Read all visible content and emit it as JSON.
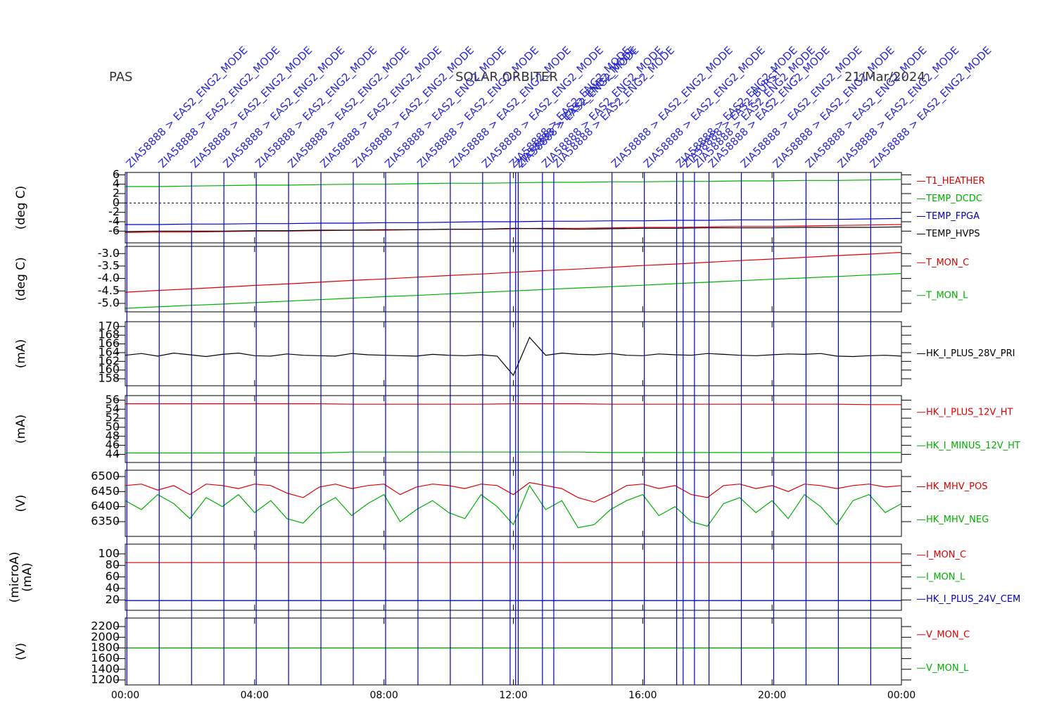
{
  "header": {
    "left": "PAS",
    "center": "SOLAR ORBITER",
    "right": "21/Mar/2024"
  },
  "events": {
    "x": [
      0.05,
      1.05,
      2.05,
      3.05,
      4.05,
      5.05,
      6.05,
      7.05,
      8.05,
      9.05,
      10.05,
      11.05,
      11.9,
      12.07,
      12.15,
      12.9,
      13.25,
      15.05,
      16.05,
      17.05,
      17.25,
      17.6,
      18.05,
      19.05,
      20.05,
      21.05,
      22.05,
      23.05
    ],
    "labels": [
      "ZIA58888 > EAS2_ENG2_MODE",
      "ZIA58888 > EAS2_ENG2_MODE",
      "ZIA58888 > EAS2_ENG2_MODE",
      "ZIA58888 > EAS2_ENG2_MODE",
      "ZIA58888 > EAS2_ENG2_MODE",
      "ZIA58888 > EAS2_ENG2_MODE",
      "ZIA58888 > EAS2_ENG2_MODE",
      "ZIA58888 > EAS2_ENG2_MODE",
      "ZIA58888 > EAS2_ENG2_MODE",
      "ZIA58888 > EAS2_ENG2_MODE",
      "ZIA58888 > EAS2_ENG2_MODE",
      "ZIA58888 > EAS2_ENG2_MODE",
      "ZIA58888 > EAS2_ENG2_MODE",
      "ZIA58888 > EAS2_ENG2_MODE",
      "ZIA58888 > EAS2_ENG2_MODE",
      "ZIA58888 > EAS2_ENG2_MODE",
      "ZIA58888 > EAS2_ENG2_MODE",
      "ZIA58888 > EAS2_ENG2_MODE",
      "ZIA58888 > EAS2_ENG2_MODE",
      "ZIA58888 > EAS2_ENG2_MODE",
      "ZIA58888 > EAS2_BURST",
      "ZIA58888 > EAS2_ENG2_MODE",
      "ZIA58888 > EAS2_ENG2_MODE",
      "ZIA58888 > EAS2_ENG2_MODE",
      "ZIA58888 > EAS2_ENG2_MODE",
      "ZIA58888 > EAS2_ENG2_MODE",
      "ZIA58888 > EAS2_ENG2_MODE",
      "ZIA58888 > EAS2_ENG2_MODE"
    ]
  },
  "chart_data": [
    {
      "type": "line",
      "ylabel": [
        "(deg C)"
      ],
      "ylim": [
        -8.5,
        6.5
      ],
      "yticks": [
        6,
        4,
        2,
        0,
        -2,
        -4,
        -6
      ],
      "hline": 0,
      "x": [
        0,
        1,
        2,
        3,
        4,
        5,
        6,
        7,
        8,
        9,
        10,
        11,
        12,
        13,
        14,
        15,
        16,
        17,
        18,
        19,
        20,
        21,
        22,
        23,
        24
      ],
      "series": [
        {
          "name": "T1_HEATHER",
          "color": "#e00000",
          "values": [
            -6.3,
            -6.2,
            -6.2,
            -6.1,
            -6.0,
            -6.0,
            -5.9,
            -5.8,
            -5.8,
            -5.7,
            -5.6,
            -5.6,
            -5.5,
            -5.4,
            -5.4,
            -5.3,
            -5.2,
            -5.2,
            -5.1,
            -5.0,
            -5.0,
            -4.9,
            -4.8,
            -4.7,
            -4.6
          ]
        },
        {
          "name": "TEMP_DCDC",
          "color": "#00b000",
          "values": [
            3.5,
            3.5,
            3.6,
            3.7,
            3.8,
            3.8,
            3.9,
            4.0,
            4.0,
            4.1,
            4.2,
            4.2,
            4.3,
            4.4,
            4.4,
            4.5,
            4.5,
            4.6,
            4.6,
            4.7,
            4.7,
            4.8,
            4.8,
            4.9,
            5.0
          ]
        },
        {
          "name": "TEMP_FPGA",
          "color": "#0000c0",
          "values": [
            -4.6,
            -4.6,
            -4.5,
            -4.5,
            -4.4,
            -4.4,
            -4.3,
            -4.3,
            -4.2,
            -4.2,
            -4.1,
            -4.0,
            -4.0,
            -3.9,
            -3.9,
            -3.8,
            -3.8,
            -3.7,
            -3.7,
            -3.6,
            -3.6,
            -3.5,
            -3.5,
            -3.4,
            -3.3
          ]
        },
        {
          "name": "TEMP_HVPS",
          "color": "#000000",
          "values": [
            -6.1,
            -6.0,
            -6.0,
            -6.0,
            -5.9,
            -5.9,
            -5.8,
            -5.8,
            -5.7,
            -5.7,
            -5.6,
            -5.6,
            -5.4,
            -5.5,
            -5.6,
            -5.5,
            -5.4,
            -5.4,
            -5.3,
            -5.3,
            -5.3,
            -5.2,
            -5.2,
            -5.2,
            -5.1
          ]
        }
      ]
    },
    {
      "type": "line",
      "ylabel": [
        "(deg C)"
      ],
      "ylim": [
        -5.34,
        -2.71
      ],
      "yticks": [
        {
          "value": -3,
          "label": "-3.0"
        },
        {
          "value": -3.5,
          "label": "-3.5"
        },
        {
          "value": -4,
          "label": "-4.0"
        },
        {
          "value": -4.5,
          "label": "-4.5"
        },
        {
          "value": -5,
          "label": "-5.0"
        }
      ],
      "x": [
        0,
        1,
        2,
        3,
        4,
        5,
        6,
        7,
        8,
        9,
        10,
        11,
        12,
        13,
        14,
        15,
        16,
        17,
        18,
        19,
        20,
        21,
        22,
        23,
        24
      ],
      "series": [
        {
          "name": "T_MON_C",
          "color": "#e00000",
          "values": [
            -4.55,
            -4.48,
            -4.42,
            -4.35,
            -4.28,
            -4.22,
            -4.15,
            -4.08,
            -4.02,
            -3.95,
            -3.88,
            -3.82,
            -3.75,
            -3.68,
            -3.62,
            -3.55,
            -3.48,
            -3.42,
            -3.35,
            -3.28,
            -3.22,
            -3.15,
            -3.08,
            -3.02,
            -2.95
          ]
        },
        {
          "name": "T_MON_L",
          "color": "#00b000",
          "values": [
            -5.2,
            -5.14,
            -5.08,
            -5.03,
            -4.97,
            -4.91,
            -4.85,
            -4.79,
            -4.73,
            -4.68,
            -4.62,
            -4.56,
            -4.5,
            -4.44,
            -4.38,
            -4.33,
            -4.27,
            -4.21,
            -4.15,
            -4.09,
            -4.03,
            -3.98,
            -3.92,
            -3.86,
            -3.8
          ]
        }
      ]
    },
    {
      "type": "line",
      "ylabel": [
        "(mA)"
      ],
      "ylim": [
        156.4,
        171.1
      ],
      "yticks": [
        170,
        168,
        166,
        164,
        162,
        160,
        158
      ],
      "x": [
        0,
        0.5,
        1,
        1.5,
        2,
        2.5,
        3,
        3.5,
        4,
        4.5,
        5,
        5.5,
        6,
        6.5,
        7,
        7.5,
        8,
        8.5,
        9,
        9.5,
        10,
        10.5,
        11,
        11.5,
        12,
        12.5,
        13,
        13.5,
        14,
        14.5,
        15,
        15.5,
        16,
        16.5,
        17,
        17.5,
        18,
        18.5,
        19,
        19.5,
        20,
        20.5,
        21,
        21.5,
        22,
        22.5,
        23,
        23.5,
        24
      ],
      "series": [
        {
          "name": "HK_I_PLUS_28V_PRI",
          "color": "#000000",
          "values": [
            163.4,
            163.8,
            163.2,
            163.9,
            163.5,
            163.1,
            163.6,
            163.9,
            163.3,
            163.2,
            163.7,
            163.4,
            163.3,
            163.2,
            163.8,
            163.5,
            163.4,
            163.3,
            163.2,
            163.6,
            163.4,
            163.3,
            163.5,
            163.2,
            158.8,
            167.5,
            163.4,
            163.9,
            163.6,
            163.5,
            163.8,
            163.4,
            163.3,
            163.7,
            163.5,
            163.4,
            163.8,
            163.6,
            163.4,
            163.3,
            163.5,
            163.7,
            163.6,
            163.8,
            163.2,
            163.1,
            163.3,
            163.4,
            163.2
          ]
        }
      ]
    },
    {
      "type": "line",
      "ylabel": [
        "(mA)"
      ],
      "ylim": [
        42.2,
        57
      ],
      "yticks": [
        56,
        54,
        52,
        50,
        48,
        46,
        44
      ],
      "x": [
        0,
        1,
        2,
        3,
        4,
        5,
        6,
        7,
        8,
        9,
        10,
        11,
        12,
        13,
        14,
        15,
        16,
        17,
        18,
        19,
        20,
        21,
        22,
        23,
        24
      ],
      "series": [
        {
          "name": "HK_I_PLUS_12V_HT",
          "color": "#e00000",
          "values": [
            55.2,
            55.2,
            55.2,
            55.2,
            55.2,
            55.2,
            55.2,
            55.1,
            55.1,
            55.1,
            55.1,
            55.1,
            55.2,
            55.2,
            55.2,
            55.1,
            55.1,
            55.1,
            55.1,
            55.1,
            55.1,
            55.1,
            55.1,
            55.0,
            55.0
          ]
        },
        {
          "name": "HK_I_MINUS_12V_HT",
          "color": "#00b000",
          "values": [
            44.3,
            44.3,
            44.3,
            44.3,
            44.3,
            44.3,
            44.3,
            44.5,
            44.5,
            44.5,
            44.5,
            44.5,
            44.5,
            44.5,
            44.5,
            44.4,
            44.4,
            44.4,
            44.4,
            44.4,
            44.4,
            44.4,
            44.4,
            44.4,
            44.4
          ]
        }
      ]
    },
    {
      "type": "line",
      "ylabel": [
        "(V)"
      ],
      "ylim": [
        6301,
        6521
      ],
      "yticks": [
        6500,
        6450,
        6400,
        6350
      ],
      "x": [
        0,
        0.5,
        1,
        1.5,
        2,
        2.5,
        3,
        3.5,
        4,
        4.5,
        5,
        5.5,
        6,
        6.5,
        7,
        7.5,
        8,
        8.5,
        9,
        9.5,
        10,
        10.5,
        11,
        11.5,
        12,
        12.5,
        13,
        13.5,
        14,
        14.5,
        15,
        15.5,
        16,
        16.5,
        17,
        17.5,
        18,
        18.5,
        19,
        19.5,
        20,
        20.5,
        21,
        21.5,
        22,
        22.5,
        23,
        23.5,
        24
      ],
      "series": [
        {
          "name": "HK_MHV_POS",
          "color": "#e00000",
          "values": [
            6470,
            6475,
            6455,
            6470,
            6440,
            6475,
            6470,
            6460,
            6475,
            6470,
            6445,
            6430,
            6465,
            6475,
            6460,
            6470,
            6475,
            6440,
            6465,
            6475,
            6470,
            6460,
            6475,
            6470,
            6440,
            6480,
            6470,
            6460,
            6430,
            6415,
            6440,
            6470,
            6475,
            6460,
            6470,
            6440,
            6430,
            6470,
            6475,
            6460,
            6470,
            6450,
            6475,
            6470,
            6460,
            6470,
            6475,
            6465,
            6470
          ]
        },
        {
          "name": "HK_MHV_NEG",
          "color": "#00b000",
          "values": [
            6420,
            6390,
            6440,
            6410,
            6360,
            6430,
            6400,
            6440,
            6380,
            6420,
            6360,
            6345,
            6400,
            6430,
            6370,
            6410,
            6440,
            6350,
            6390,
            6420,
            6380,
            6360,
            6440,
            6400,
            6340,
            6470,
            6390,
            6420,
            6330,
            6340,
            6390,
            6420,
            6440,
            6370,
            6400,
            6350,
            6335,
            6410,
            6430,
            6380,
            6420,
            6360,
            6440,
            6400,
            6340,
            6420,
            6440,
            6380,
            6410
          ]
        }
      ]
    },
    {
      "type": "line",
      "ylabel": [
        "(microA)",
        "(mA)"
      ],
      "ylim": [
        2,
        117
      ],
      "yticks": [
        100,
        80,
        60,
        40,
        20
      ],
      "x": [
        0,
        24
      ],
      "series": [
        {
          "name": "I_MON_C",
          "color": "#e00000",
          "values": [
            85,
            85
          ]
        },
        {
          "name": "I_MON_L",
          "color": "#00b000",
          "values": [
            19,
            19
          ]
        },
        {
          "name": "HK_I_PLUS_24V_CEM",
          "color": "#0000c0",
          "values": [
            19,
            19
          ]
        }
      ]
    },
    {
      "type": "line",
      "ylabel": [
        "(V)"
      ],
      "ylim": [
        1107,
        2360
      ],
      "yticks": [
        2200,
        2000,
        1800,
        1600,
        1400,
        1200
      ],
      "xlim": [
        0,
        24
      ],
      "xticks": [
        {
          "value": 0,
          "label": "00:00"
        },
        {
          "value": 4,
          "label": "04:00"
        },
        {
          "value": 8,
          "label": "08:00"
        },
        {
          "value": 12,
          "label": "12:00"
        },
        {
          "value": 16,
          "label": "16:00"
        },
        {
          "value": 20,
          "label": "20:00"
        },
        {
          "value": 24,
          "label": "00:00"
        }
      ],
      "x": [
        0,
        24
      ],
      "series": [
        {
          "name": "V_MON_C",
          "color": "#e00000",
          "values": [
            1800,
            1800
          ]
        },
        {
          "name": "V_MON_L",
          "color": "#00b000",
          "values": [
            1800,
            1800
          ]
        }
      ]
    }
  ]
}
